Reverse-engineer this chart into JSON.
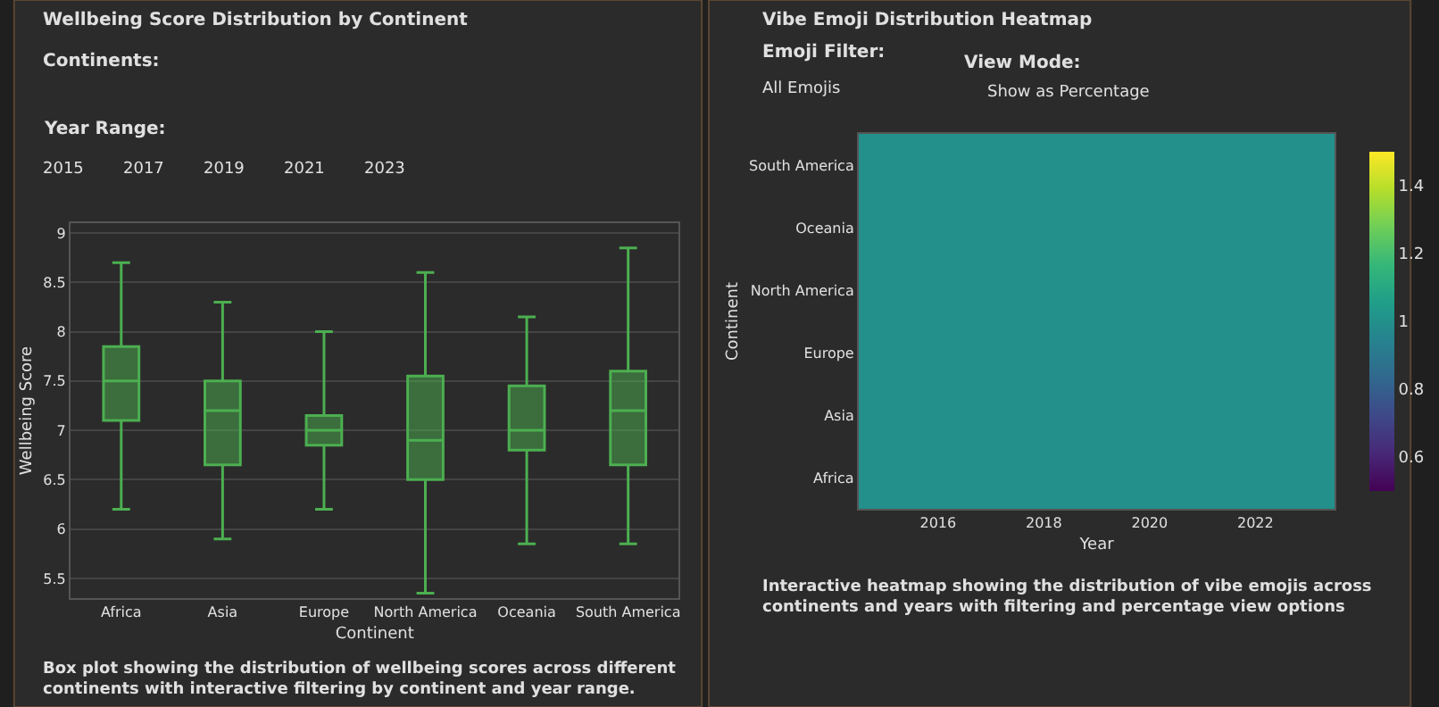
{
  "chart_data": [
    {
      "type": "box",
      "title": "Wellbeing Score Distribution by Continent",
      "xlabel": "Continent",
      "ylabel": "Wellbeing Score",
      "categories": [
        "Africa",
        "Asia",
        "Europe",
        "North America",
        "Oceania",
        "South America"
      ],
      "boxes": [
        {
          "low": 6.2,
          "q1": 7.1,
          "median": 7.5,
          "q3": 7.85,
          "high": 8.7
        },
        {
          "low": 5.9,
          "q1": 6.65,
          "median": 7.2,
          "q3": 7.5,
          "high": 8.3
        },
        {
          "low": 6.2,
          "q1": 6.85,
          "median": 7.0,
          "q3": 7.15,
          "high": 8.0
        },
        {
          "low": 5.35,
          "q1": 6.5,
          "median": 6.9,
          "q3": 7.55,
          "high": 8.6
        },
        {
          "low": 5.85,
          "q1": 6.8,
          "median": 7.0,
          "q3": 7.45,
          "high": 8.15
        },
        {
          "low": 5.85,
          "q1": 6.65,
          "median": 7.2,
          "q3": 7.6,
          "high": 8.85
        }
      ],
      "color": "#4caf50",
      "ylim": [
        5.3,
        9.1
      ],
      "yticks": [
        5.5,
        6,
        6.5,
        7,
        7.5,
        8,
        8.5,
        9
      ],
      "grid": "y",
      "annotations": [
        "Continents:",
        "Year Range:",
        "2015",
        "2017",
        "2019",
        "2021",
        "2023",
        "Box plot showing the distribution of wellbeing scores across different continents with interactive filtering by continent and year range."
      ]
    },
    {
      "type": "heatmap",
      "title": "Vibe Emoji Distribution Heatmap",
      "xlabel": "Year",
      "ylabel": "Continent",
      "x": [
        2015,
        2016,
        2017,
        2018,
        2019,
        2020,
        2021,
        2022,
        2023
      ],
      "y_categories": [
        "South America",
        "Oceania",
        "North America",
        "Europe",
        "Asia",
        "Africa"
      ],
      "cells": [
        [
          1,
          1,
          1,
          1,
          1,
          1,
          1,
          1,
          1
        ],
        [
          1,
          1,
          1,
          1,
          1,
          1,
          1,
          1,
          1
        ],
        [
          1,
          1,
          1,
          1,
          1,
          1,
          1,
          1,
          1
        ],
        [
          1,
          1,
          1,
          1,
          1,
          1,
          1,
          1,
          1
        ],
        [
          1,
          1,
          1,
          1,
          1,
          1,
          1,
          1,
          1
        ],
        [
          1,
          1,
          1,
          1,
          1,
          1,
          1,
          1,
          1
        ]
      ],
      "clim": [
        0.5,
        1.5
      ],
      "cticks": [
        0.6,
        0.8,
        1,
        1.2,
        1.4
      ],
      "xlim": [
        2014.5,
        2023.5
      ],
      "xticks": [
        2016,
        2018,
        2020,
        2022
      ],
      "annotations": [
        "Emoji Filter:",
        "All Emojis",
        "View Mode:",
        "Show as Percentage",
        "Interactive heatmap showing the distribution of vibe emojis across continents and years with filtering and percentage view options"
      ]
    }
  ]
}
